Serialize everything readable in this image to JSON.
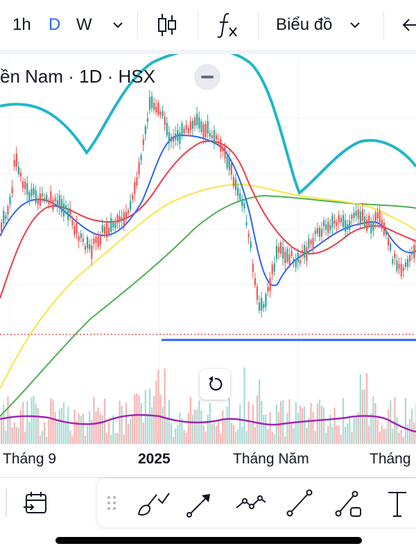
{
  "toolbar": {
    "interval_1h": "1h",
    "interval_d": "D",
    "interval_w": "W",
    "chart_type_label": "Biểu đồ",
    "icons": [
      "chevron-down-icon",
      "candlestick-icon",
      "indicator-fx-icon",
      "back-arrow-icon"
    ]
  },
  "legend": {
    "title": "ền Nam · 1D · HSX"
  },
  "time_axis": {
    "labels": [
      "Tháng 9",
      "2025",
      "Tháng Năm",
      "Tháng"
    ]
  },
  "drawing_tools": [
    "calendar-range-icon",
    "drag-handle-icon",
    "brush-icon",
    "arrow-line-icon",
    "path-icon",
    "trend-line-icon",
    "ray-icon",
    "text-tool-icon"
  ],
  "colors": {
    "bull": "#26a69a",
    "bear": "#ef5350",
    "ma_blue": "#2962ff",
    "ma_red": "#f23645",
    "ma_yellow": "#f5e642",
    "ma_green": "#4caf50",
    "cyan_curve": "#1fb6c9",
    "support_line": "#2962ff",
    "volume_ma": "#9c27b0",
    "accent": "#2962ff"
  }
}
